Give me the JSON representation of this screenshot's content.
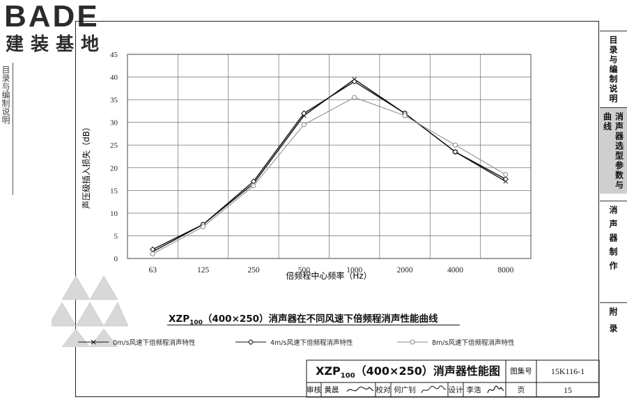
{
  "logo": {
    "word": "BADE",
    "cn": "建装基地"
  },
  "side_tabs": [
    {
      "label": "目录与编制说明",
      "active": false
    },
    {
      "label": "消声器选型参数与曲线",
      "active": true
    },
    {
      "label": "消声器制作",
      "active": false
    },
    {
      "label": "附录",
      "active": false
    }
  ],
  "left_strip_text": "目录与编制说明",
  "chart_data": {
    "type": "line",
    "xlabel": "倍频程中心频率（Hz）",
    "ylabel": "声压级插入损失（dB）",
    "categories": [
      "63",
      "125",
      "250",
      "500",
      "1000",
      "2000",
      "4000",
      "8000"
    ],
    "ylim": [
      0,
      45
    ],
    "yticks": [
      0,
      5,
      10,
      15,
      20,
      25,
      30,
      35,
      40,
      45
    ],
    "grid": true,
    "legend_position": "bottom",
    "series": [
      {
        "name": "0m/s风速下倍频程消声特性",
        "marker": "cross",
        "color": "#111111",
        "values": [
          1.5,
          7.5,
          16.5,
          31.5,
          39.5,
          32,
          23.5,
          17
        ]
      },
      {
        "name": "4m/s风速下倍频程消声特性",
        "marker": "diamond",
        "color": "#111111",
        "values": [
          2,
          7.5,
          17,
          32,
          39,
          32,
          23.5,
          17.5
        ]
      },
      {
        "name": "8m/s风速下倍频程消声特性",
        "marker": "circle",
        "color": "#888888",
        "values": [
          1,
          7,
          16,
          29.5,
          35.5,
          31.5,
          25,
          18.5
        ]
      }
    ]
  },
  "caption": {
    "main": "XZP",
    "sub": "100",
    "rest": "（400×250）消声器在不同风速下倍频程消声性能曲线"
  },
  "title_block": {
    "title_main": "XZP",
    "title_sub": "100",
    "title_rest": "（400×250）消声器性能图",
    "atlas_label": "图集号",
    "atlas_no": "15K116-1",
    "review_label": "审核",
    "reviewer": "黄晨",
    "check_label": "校对",
    "checker": "何广钊",
    "design_label": "设计",
    "designer": "李浩",
    "page_label": "页",
    "page_no": "15"
  }
}
